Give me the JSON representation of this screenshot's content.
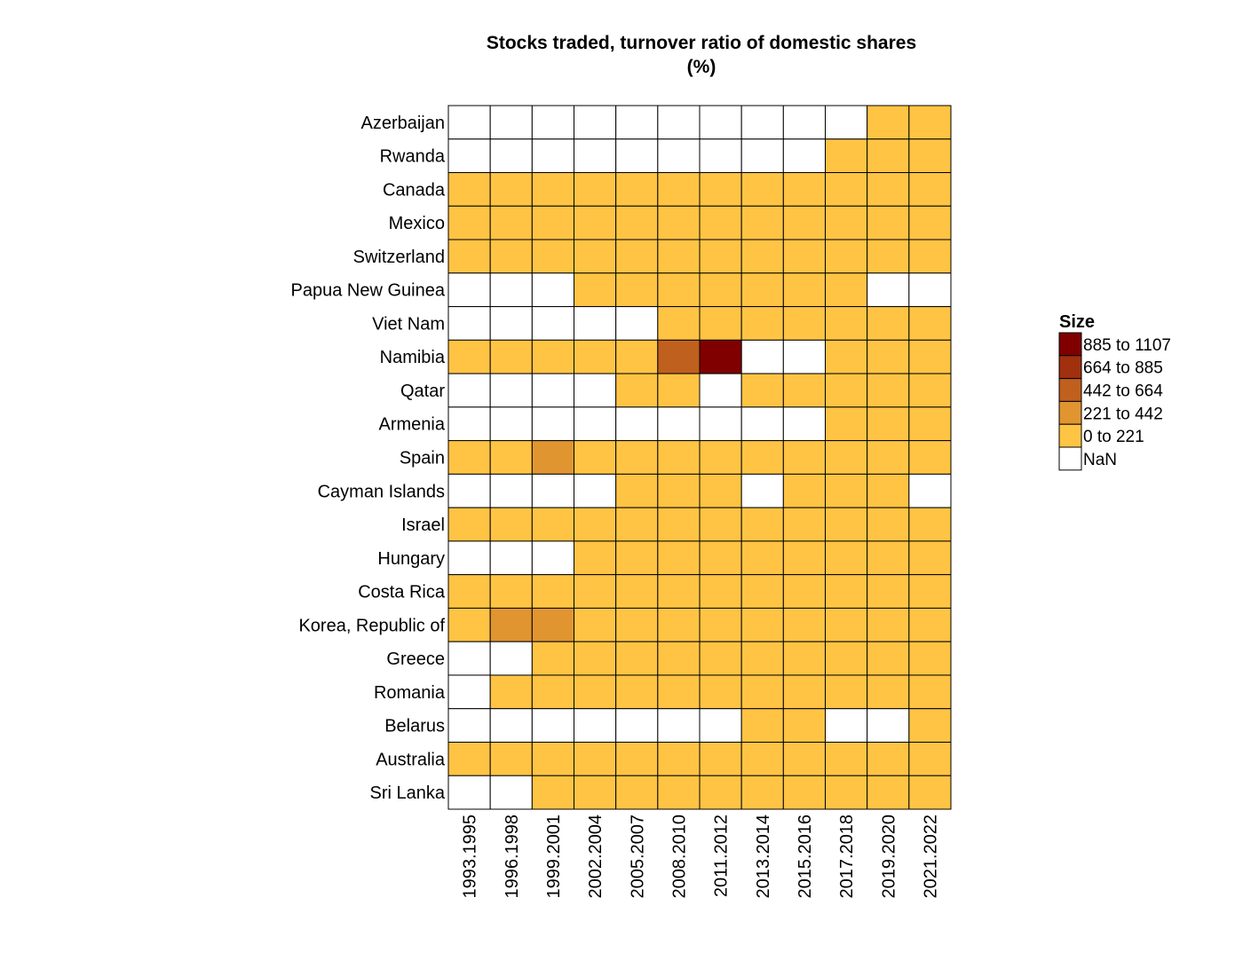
{
  "chart_data": {
    "type": "heatmap",
    "title": [
      "Stocks traded, turnover ratio of domestic shares",
      "(%)"
    ],
    "x_categories": [
      "1993.1995",
      "1996.1998",
      "1999.2001",
      "2002.2004",
      "2005.2007",
      "2008.2010",
      "2011.2012",
      "2013.2014",
      "2015.2016",
      "2017.2018",
      "2019.2020",
      "2021.2022"
    ],
    "y_categories": [
      "Azerbaijan",
      "Rwanda",
      "Canada",
      "Mexico",
      "Switzerland",
      "Papua New Guinea",
      "Viet Nam",
      "Namibia",
      "Qatar",
      "Armenia",
      "Spain",
      "Cayman Islands",
      "Israel",
      "Hungary",
      "Costa Rica",
      "Korea, Republic of",
      "Greece",
      "Romania",
      "Belarus",
      "Australia",
      "Sri Lanka"
    ],
    "bins": [
      "NaN",
      "0  to  221",
      "221  to  442",
      "442  to  664",
      "664  to  885",
      "885  to  1107"
    ],
    "bin_colors": [
      "#FFFFFF",
      "#FFC444",
      "#E09530",
      "#C0601E",
      "#A0300E",
      "#800000"
    ],
    "cell_bins": [
      [
        0,
        0,
        0,
        0,
        0,
        0,
        0,
        0,
        0,
        0,
        1,
        1
      ],
      [
        0,
        0,
        0,
        0,
        0,
        0,
        0,
        0,
        0,
        1,
        1,
        1
      ],
      [
        1,
        1,
        1,
        1,
        1,
        1,
        1,
        1,
        1,
        1,
        1,
        1
      ],
      [
        1,
        1,
        1,
        1,
        1,
        1,
        1,
        1,
        1,
        1,
        1,
        1
      ],
      [
        1,
        1,
        1,
        1,
        1,
        1,
        1,
        1,
        1,
        1,
        1,
        1
      ],
      [
        0,
        0,
        0,
        1,
        1,
        1,
        1,
        1,
        1,
        1,
        0,
        0
      ],
      [
        0,
        0,
        0,
        0,
        0,
        1,
        1,
        1,
        1,
        1,
        1,
        1
      ],
      [
        1,
        1,
        1,
        1,
        1,
        3,
        5,
        0,
        0,
        1,
        1,
        1
      ],
      [
        0,
        0,
        0,
        0,
        1,
        1,
        0,
        1,
        1,
        1,
        1,
        1
      ],
      [
        0,
        0,
        0,
        0,
        0,
        0,
        0,
        0,
        0,
        1,
        1,
        1
      ],
      [
        1,
        1,
        2,
        1,
        1,
        1,
        1,
        1,
        1,
        1,
        1,
        1
      ],
      [
        0,
        0,
        0,
        0,
        1,
        1,
        1,
        0,
        1,
        1,
        1,
        0
      ],
      [
        1,
        1,
        1,
        1,
        1,
        1,
        1,
        1,
        1,
        1,
        1,
        1
      ],
      [
        0,
        0,
        0,
        1,
        1,
        1,
        1,
        1,
        1,
        1,
        1,
        1
      ],
      [
        1,
        1,
        1,
        1,
        1,
        1,
        1,
        1,
        1,
        1,
        1,
        1
      ],
      [
        1,
        2,
        2,
        1,
        1,
        1,
        1,
        1,
        1,
        1,
        1,
        1
      ],
      [
        0,
        0,
        1,
        1,
        1,
        1,
        1,
        1,
        1,
        1,
        1,
        1
      ],
      [
        0,
        1,
        1,
        1,
        1,
        1,
        1,
        1,
        1,
        1,
        1,
        1
      ],
      [
        0,
        0,
        0,
        0,
        0,
        0,
        0,
        1,
        1,
        0,
        0,
        1
      ],
      [
        1,
        1,
        1,
        1,
        1,
        1,
        1,
        1,
        1,
        1,
        1,
        1
      ],
      [
        0,
        0,
        1,
        1,
        1,
        1,
        1,
        1,
        1,
        1,
        1,
        1
      ]
    ],
    "legend": {
      "title": "Size",
      "items": [
        "885  to  1107",
        "664  to  885",
        "442  to  664",
        "221  to  442",
        "0  to  221",
        "NaN"
      ],
      "item_bins": [
        5,
        4,
        3,
        2,
        1,
        0
      ],
      "placement": "right"
    },
    "grid": true
  }
}
